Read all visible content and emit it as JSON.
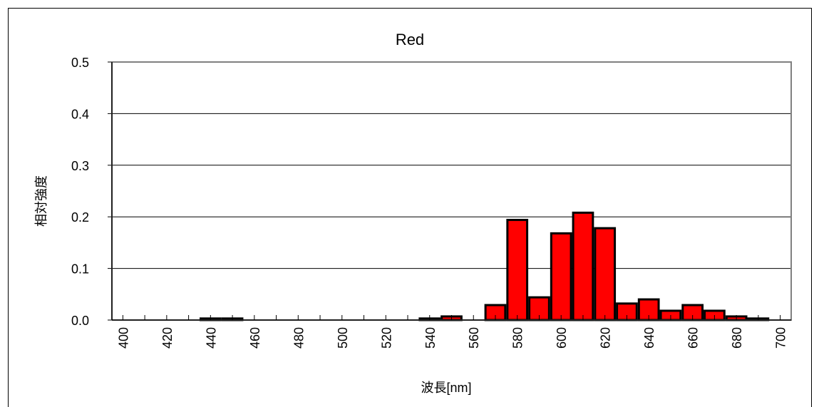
{
  "chart_data": {
    "type": "bar",
    "title": "Red",
    "xlabel": "波長[nm]",
    "ylabel": "相対強度",
    "ylim": [
      0,
      0.5
    ],
    "yticks": [
      "0.0",
      "0.1",
      "0.2",
      "0.3",
      "0.4",
      "0.5"
    ],
    "xticks": [
      "400",
      "420",
      "440",
      "460",
      "480",
      "500",
      "520",
      "540",
      "560",
      "580",
      "600",
      "620",
      "640",
      "660",
      "680",
      "700"
    ],
    "categories": [
      400,
      410,
      420,
      430,
      440,
      450,
      460,
      470,
      480,
      490,
      500,
      510,
      520,
      530,
      540,
      550,
      560,
      570,
      580,
      590,
      600,
      610,
      620,
      630,
      640,
      650,
      660,
      670,
      680,
      690,
      700
    ],
    "values": [
      0,
      0,
      0,
      0,
      0.003,
      0.003,
      0,
      0,
      0,
      0,
      0,
      0,
      0,
      0,
      0.003,
      0.007,
      0,
      0.029,
      0.194,
      0.044,
      0.168,
      0.208,
      0.178,
      0.032,
      0.04,
      0.018,
      0.029,
      0.018,
      0.007,
      0.003,
      0
    ],
    "bar_color": "#ff0000",
    "grid": true
  }
}
